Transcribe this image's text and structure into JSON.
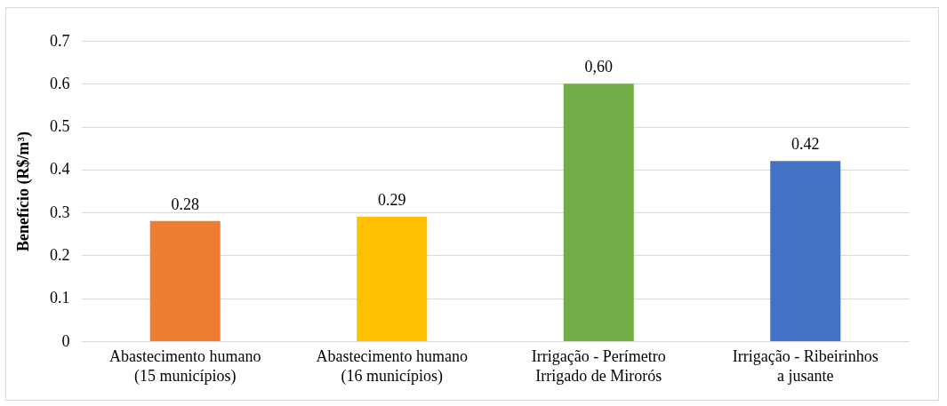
{
  "chart_data": {
    "type": "bar",
    "ylabel": "Benefício (R$/m³)",
    "categories": [
      "Abastecimento humano\n(15 municípios)",
      "Abastecimento humano\n(16 municípios)",
      "Irrigação - Perímetro\nIrrigado de Mirorós",
      "Irrigação - Ribeirinhos\na jusante"
    ],
    "values": [
      0.28,
      0.29,
      0.6,
      0.42
    ],
    "colors": [
      "#ed7d31",
      "#ffc000",
      "#70ad47",
      "#4472c4"
    ],
    "value_labels": [
      "0.28",
      "0.29",
      "0,60",
      "0.42"
    ],
    "ylim": [
      0,
      0.7
    ],
    "yticks": [
      0,
      0.1,
      0.2,
      0.3,
      0.4,
      0.5,
      0.6,
      0.7
    ],
    "grid": "y"
  }
}
